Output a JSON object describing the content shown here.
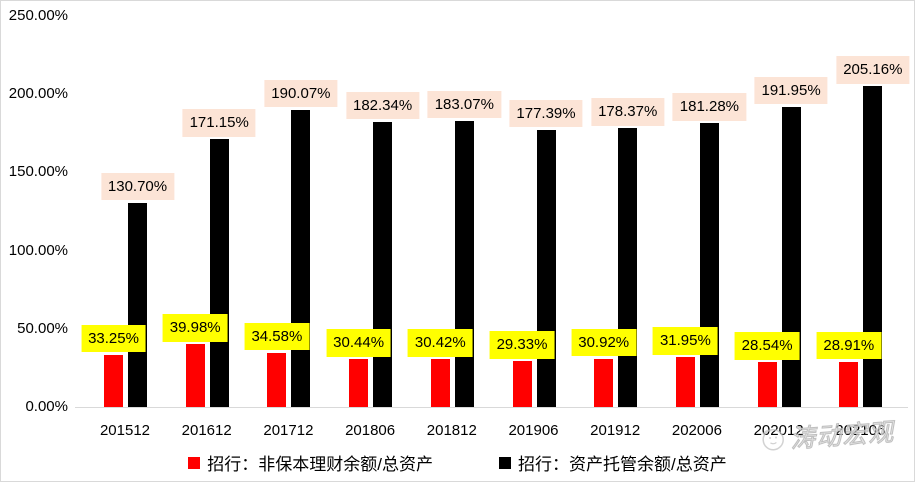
{
  "chart_data": {
    "type": "bar",
    "title": "",
    "categories": [
      "201512",
      "201612",
      "201712",
      "201806",
      "201812",
      "201906",
      "201912",
      "202006",
      "202012",
      "202106"
    ],
    "series": [
      {
        "name": "招行：非保本理财余额/总资产",
        "color": "#ff0000",
        "label_bg": "#ffff00",
        "values": [
          33.25,
          39.98,
          34.58,
          30.44,
          30.42,
          29.33,
          30.92,
          31.95,
          28.54,
          28.91
        ]
      },
      {
        "name": "招行：资产托管余额/总资产",
        "color": "#000000",
        "label_bg": "#fce4d6",
        "values": [
          130.7,
          171.15,
          190.07,
          182.34,
          183.07,
          177.39,
          178.37,
          181.28,
          191.95,
          205.16
        ]
      }
    ],
    "y_ticks": [
      "250.00%",
      "200.00%",
      "150.00%",
      "100.00%",
      "50.00%",
      "0.00%"
    ],
    "y_tick_values": [
      250,
      200,
      150,
      100,
      50,
      0
    ],
    "ylim": [
      0,
      250
    ],
    "grid": false,
    "legend_position": "bottom",
    "value_suffix": "%"
  },
  "watermark": {
    "text": "涛动宏观"
  },
  "colors": {
    "axis_line": "#d9d9d9",
    "border": "#d9d9d9",
    "label_text": "#000000"
  }
}
